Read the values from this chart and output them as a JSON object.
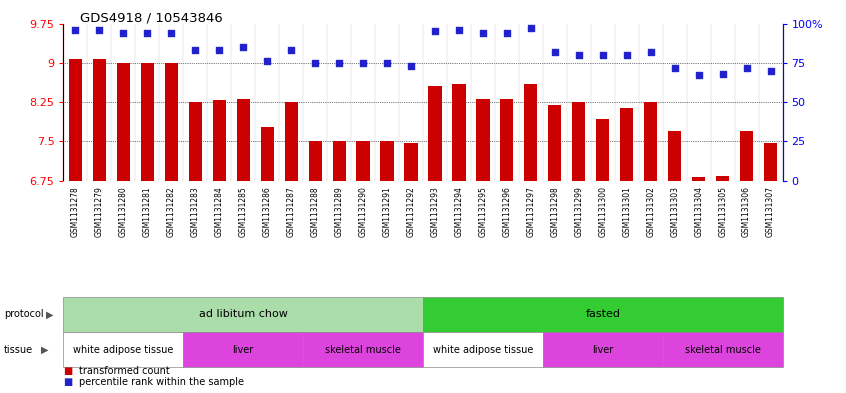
{
  "title": "GDS4918 / 10543846",
  "samples": [
    "GSM1131278",
    "GSM1131279",
    "GSM1131280",
    "GSM1131281",
    "GSM1131282",
    "GSM1131283",
    "GSM1131284",
    "GSM1131285",
    "GSM1131286",
    "GSM1131287",
    "GSM1131288",
    "GSM1131289",
    "GSM1131290",
    "GSM1131291",
    "GSM1131292",
    "GSM1131293",
    "GSM1131294",
    "GSM1131295",
    "GSM1131296",
    "GSM1131297",
    "GSM1131298",
    "GSM1131299",
    "GSM1131300",
    "GSM1131301",
    "GSM1131302",
    "GSM1131303",
    "GSM1131304",
    "GSM1131305",
    "GSM1131306",
    "GSM1131307"
  ],
  "bar_values": [
    9.07,
    9.07,
    9.0,
    9.0,
    9.0,
    8.25,
    8.3,
    8.32,
    7.78,
    8.25,
    7.5,
    7.5,
    7.5,
    7.5,
    7.47,
    8.55,
    8.6,
    8.32,
    8.32,
    8.6,
    8.2,
    8.25,
    7.93,
    8.13,
    8.25,
    7.7,
    6.82,
    6.85,
    7.7,
    7.48
  ],
  "dot_values": [
    96,
    96,
    94,
    94,
    94,
    83,
    83,
    85,
    76,
    83,
    75,
    75,
    75,
    75,
    73,
    95,
    96,
    94,
    94,
    97,
    82,
    80,
    80,
    80,
    82,
    72,
    67,
    68,
    72,
    70
  ],
  "ylim_left": [
    6.75,
    9.75
  ],
  "ylim_right": [
    0,
    100
  ],
  "yticks_left": [
    6.75,
    7.5,
    8.25,
    9.0,
    9.75
  ],
  "ytick_labels_left": [
    "6.75",
    "7.5",
    "8.25",
    "9",
    "9.75"
  ],
  "yticks_right": [
    0,
    25,
    50,
    75,
    100
  ],
  "ytick_labels_right": [
    "0",
    "25",
    "50",
    "75",
    "100%"
  ],
  "bar_color": "#cc0000",
  "dot_color": "#2222cc",
  "background_color": "#ffffff",
  "protocol_groups": [
    {
      "label": "ad libitum chow",
      "start": 0,
      "end": 15,
      "color": "#aaddaa"
    },
    {
      "label": "fasted",
      "start": 15,
      "end": 30,
      "color": "#33cc33"
    }
  ],
  "tissue_groups": [
    {
      "label": "white adipose tissue",
      "start": 0,
      "end": 5,
      "color": "#ffffff"
    },
    {
      "label": "liver",
      "start": 5,
      "end": 10,
      "color": "#dd44dd"
    },
    {
      "label": "skeletal muscle",
      "start": 10,
      "end": 15,
      "color": "#dd44dd"
    },
    {
      "label": "white adipose tissue",
      "start": 15,
      "end": 20,
      "color": "#ffffff"
    },
    {
      "label": "liver",
      "start": 20,
      "end": 25,
      "color": "#dd44dd"
    },
    {
      "label": "skeletal muscle",
      "start": 25,
      "end": 30,
      "color": "#dd44dd"
    }
  ],
  "legend_items": [
    {
      "label": "transformed count",
      "color": "#cc0000"
    },
    {
      "label": "percentile rank within the sample",
      "color": "#2222cc"
    }
  ],
  "xlabel_bg_color": "#dddddd",
  "xlabel_fontsize": 5.5,
  "bar_width": 0.55
}
